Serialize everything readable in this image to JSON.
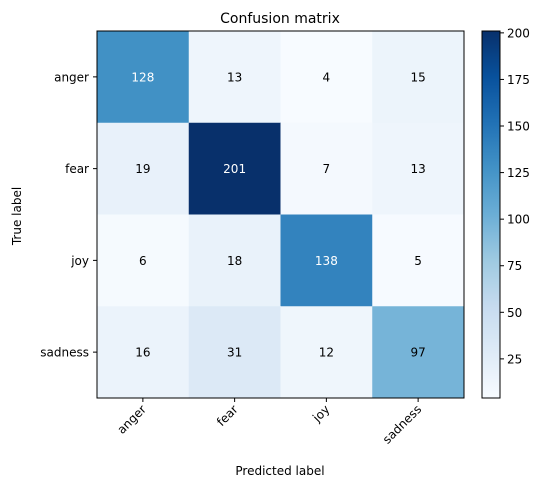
{
  "chart_data": {
    "type": "heatmap",
    "title": "Confusion matrix",
    "xlabel": "Predicted label",
    "ylabel": "True label",
    "x_categories": [
      "anger",
      "fear",
      "joy",
      "sadness"
    ],
    "y_categories": [
      "anger",
      "fear",
      "joy",
      "sadness"
    ],
    "matrix": [
      [
        128,
        13,
        4,
        15
      ],
      [
        19,
        201,
        7,
        13
      ],
      [
        6,
        18,
        138,
        5
      ],
      [
        16,
        31,
        12,
        97
      ]
    ],
    "colormap": "Blues",
    "colorbar": {
      "min": 4,
      "max": 201,
      "ticks": [
        25,
        50,
        75,
        100,
        125,
        150,
        175,
        200
      ]
    },
    "grid": false
  }
}
